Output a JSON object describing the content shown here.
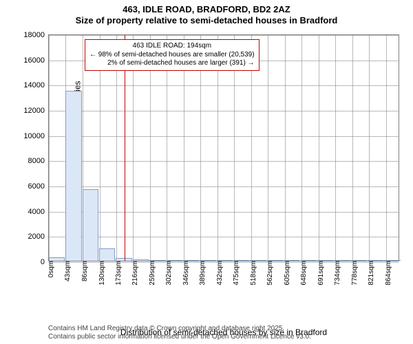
{
  "title_line1": "463, IDLE ROAD, BRADFORD, BD2 2AZ",
  "title_line2": "Size of property relative to semi-detached houses in Bradford",
  "chart": {
    "type": "histogram",
    "background_color": "#ffffff",
    "grid_color": "#808080",
    "bar_fill": "#dbe7f6",
    "bar_stroke": "#7f9fc9",
    "marker_color": "#c00000",
    "annotation_border": "#c00000",
    "ylabel": "Number of semi-detached properties",
    "xlabel": "Distribution of semi-detached houses by size in Bradford",
    "ylim": [
      0,
      18000
    ],
    "ytick_step": 2000,
    "xlim": [
      0,
      900
    ],
    "xtick_step_label": 43,
    "xticks": [
      0,
      43,
      86,
      130,
      173,
      216,
      259,
      302,
      346,
      389,
      432,
      475,
      518,
      562,
      605,
      648,
      691,
      734,
      778,
      821,
      864
    ],
    "xtick_suffix": "sqm",
    "bar_width_sqm": 43,
    "values": [
      300,
      13500,
      5700,
      1000,
      200,
      120,
      60,
      50,
      40,
      30,
      20,
      20,
      15,
      15,
      10,
      10,
      10,
      10,
      10,
      10,
      10
    ],
    "marker_x": 194,
    "annotation": {
      "title": "463 IDLE ROAD: 194sqm",
      "smaller_line": "← 98% of semi-detached houses are smaller (20,539)",
      "larger_line": "2% of semi-detached houses are larger (391) →"
    },
    "label_fontsize": 12,
    "tick_fontsize": 11,
    "xtick_fontsize": 10
  },
  "footer_line1": "Contains HM Land Registry data © Crown copyright and database right 2025.",
  "footer_line2": "Contains public sector information licensed under the Open Government Licence v3.0."
}
